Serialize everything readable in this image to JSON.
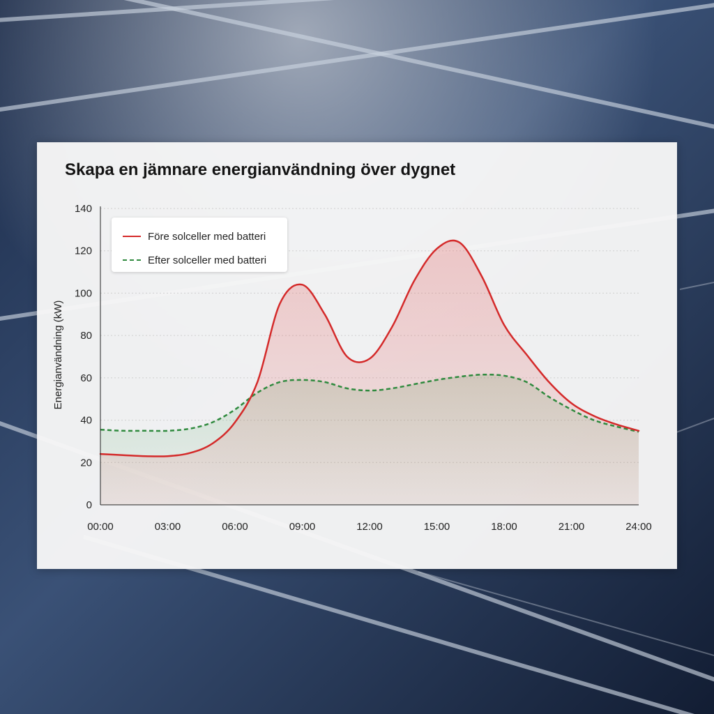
{
  "page": {
    "title": "Skapa en jämnare energianvändning över dygnet"
  },
  "colors": {
    "before": "#d42a2a",
    "after": "#2f8a3e",
    "background_panels": "#22365a"
  },
  "chart_data": {
    "type": "line",
    "title": "Skapa en jämnare energianvändning över dygnet",
    "xlabel": "",
    "ylabel": "Energianvändning (kW)",
    "x_ticks": [
      "00:00",
      "03:00",
      "06:00",
      "09:00",
      "12:00",
      "15:00",
      "18:00",
      "21:00",
      "24:00"
    ],
    "y_ticks": [
      "0",
      "20",
      "40",
      "60",
      "80",
      "100",
      "120",
      "140"
    ],
    "xlim": [
      0,
      24
    ],
    "ylim": [
      0,
      140
    ],
    "grid": "horizontal dotted",
    "legend_position": "top-left",
    "series": [
      {
        "name": "Före solceller med batteri",
        "style": "solid",
        "fill": "area",
        "x": [
          0,
          1,
          2,
          3,
          4,
          5,
          6,
          7,
          8,
          9,
          10,
          11,
          12,
          13,
          14,
          15,
          16,
          17,
          18,
          19,
          20,
          21,
          22,
          23,
          24
        ],
        "y": [
          24,
          23.5,
          23,
          23,
          24.5,
          29,
          39,
          58,
          95,
          104,
          90,
          70,
          69,
          84,
          106,
          121,
          124,
          108,
          85,
          71,
          58,
          48,
          42,
          38,
          35
        ]
      },
      {
        "name": "Efter solceller med batteri",
        "style": "dashed",
        "fill": "area",
        "x": [
          0,
          1,
          2,
          3,
          4,
          5,
          6,
          7,
          8,
          9,
          10,
          11,
          12,
          13,
          14,
          15,
          16,
          17,
          18,
          19,
          20,
          21,
          22,
          23,
          24
        ],
        "y": [
          35.5,
          35,
          35,
          35,
          36,
          39,
          45,
          53,
          58,
          59,
          58,
          55,
          54,
          55,
          57,
          59,
          60.5,
          61.5,
          61,
          58,
          51,
          45,
          40,
          37,
          34.5
        ]
      }
    ]
  }
}
